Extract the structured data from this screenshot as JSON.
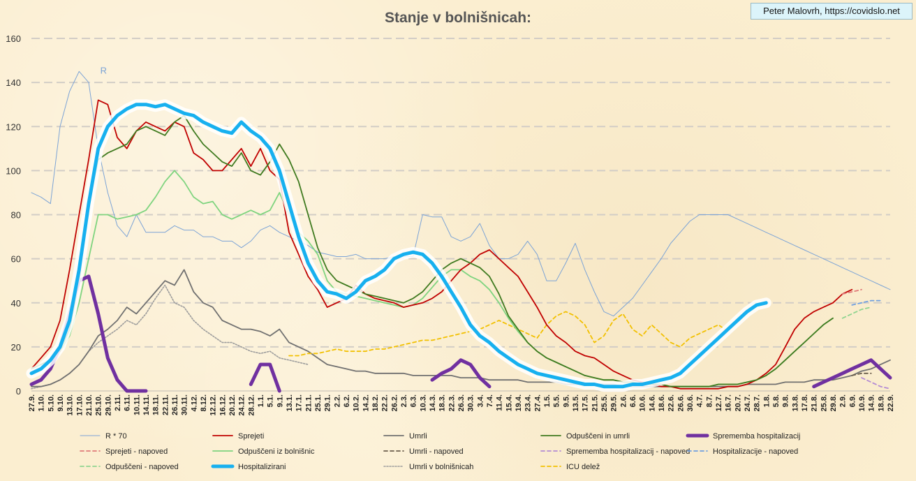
{
  "title": "Stanje v bolnišnicah:",
  "credit": "Peter Malovrh, https://covidslo.net",
  "colors": {
    "r": "#7ba3d6",
    "sprejeti": "#c00000",
    "umrli": "#707070",
    "odpusceni_umrli": "#3f7a1f",
    "sprememba": "#7030a0",
    "odpusceni_bol": "#7fd47f",
    "hospitalizirani": "#17b0ef",
    "umrli_bol": "#9c9c9c",
    "icu": "#f2c000",
    "sprejeti_nap": "#e07a7a",
    "umrli_nap": "#6b5e4c",
    "sprememba_nap": "#b48bd4",
    "hosp_nap": "#6f9fe0",
    "odpusceni_nap": "#8fd48f"
  },
  "chart_data": {
    "type": "line",
    "title": "Stanje v bolnišnicah:",
    "ylim": [
      0,
      160
    ],
    "yticks": [
      0,
      20,
      40,
      60,
      80,
      100,
      120,
      140,
      160
    ],
    "grid": true,
    "legend_position": "bottom",
    "x_start": "27.9.",
    "x_step_days": 4,
    "x_labels": [
      "27.9.",
      "1.10.",
      "5.10.",
      "9.10.",
      "13.10.",
      "17.10.",
      "21.10.",
      "25.10.",
      "29.10.",
      "2.11.",
      "6.11.",
      "10.11.",
      "14.11.",
      "18.11.",
      "22.11.",
      "26.11.",
      "30.11.",
      "4.12.",
      "8.12.",
      "12.12.",
      "16.12.",
      "20.12.",
      "24.12.",
      "28.12.",
      "1.1.",
      "5.1.",
      "9.1.",
      "13.1.",
      "17.1.",
      "21.1.",
      "25.1.",
      "29.1.",
      "2.2.",
      "6.2.",
      "10.2.",
      "14.2.",
      "18.2.",
      "22.2.",
      "26.2.",
      "2.3.",
      "6.3.",
      "10.3.",
      "14.3.",
      "18.3.",
      "22.3.",
      "26.3.",
      "30.3.",
      "3.4.",
      "7.4.",
      "11.4.",
      "15.4.",
      "19.4.",
      "23.4.",
      "27.4.",
      "1.5.",
      "5.5.",
      "9.5.",
      "13.5.",
      "17.5.",
      "21.5.",
      "25.5.",
      "29.5.",
      "2.6.",
      "6.6.",
      "10.6.",
      "14.6.",
      "18.6.",
      "22.6.",
      "26.6.",
      "30.6.",
      "4.7.",
      "8.7.",
      "12.7.",
      "16.7.",
      "20.7.",
      "24.7.",
      "28.7.",
      "1.8.",
      "5.8.",
      "9.8.",
      "13.8.",
      "17.8.",
      "21.8.",
      "25.8.",
      "29.8.",
      "2.9.",
      "6.9.",
      "10.9.",
      "14.9.",
      "18.9.",
      "22.9."
    ],
    "annotations": [
      {
        "text": "R",
        "x": "25.10.",
        "y": 145
      }
    ],
    "series": [
      {
        "key": "r",
        "name": "R * 70",
        "style": "thin",
        "start": 0,
        "values": [
          90,
          88,
          85,
          120,
          136,
          145,
          140,
          110,
          90,
          75,
          70,
          80,
          72,
          72,
          72,
          75,
          73,
          73,
          70,
          70,
          68,
          68,
          65,
          68,
          73,
          75,
          72,
          70,
          68,
          66,
          63,
          62,
          61,
          61,
          62,
          60,
          60,
          60,
          61,
          61,
          61,
          80,
          79,
          79,
          70,
          68,
          70,
          76,
          66,
          60,
          60,
          62,
          68,
          62,
          50,
          50,
          58,
          67,
          55,
          45,
          36,
          34,
          38,
          42,
          48,
          54,
          60,
          67,
          72,
          77,
          80,
          80,
          80,
          80,
          78,
          76,
          74,
          72,
          70,
          68,
          66,
          64,
          62,
          60,
          58,
          56,
          54,
          52,
          50,
          48,
          46
        ]
      },
      {
        "key": "sprejeti",
        "name": "Sprejeti",
        "style": "solid",
        "start": 0,
        "values": [
          10,
          15,
          20,
          32,
          55,
          80,
          105,
          132,
          130,
          115,
          110,
          118,
          122,
          120,
          118,
          122,
          120,
          108,
          105,
          100,
          100,
          105,
          110,
          102,
          110,
          100,
          96,
          72,
          62,
          52,
          46,
          38,
          40,
          42,
          48,
          44,
          42,
          41,
          40,
          38,
          39,
          40,
          42,
          45,
          50,
          55,
          58,
          62,
          64,
          60,
          56,
          52,
          45,
          38,
          30,
          25,
          22,
          18,
          16,
          15,
          12,
          9,
          7,
          5,
          4,
          3,
          2,
          2,
          1,
          1,
          1,
          1,
          1,
          2,
          2,
          3,
          5,
          8,
          12,
          20,
          28,
          33,
          36,
          38,
          40,
          44,
          46
        ]
      },
      {
        "key": "umrli",
        "name": "Umrli",
        "style": "solid",
        "start": 0,
        "values": [
          2,
          2,
          3,
          5,
          8,
          12,
          18,
          25,
          28,
          32,
          38,
          35,
          40,
          45,
          50,
          48,
          55,
          45,
          40,
          38,
          32,
          30,
          28,
          28,
          27,
          25,
          28,
          22,
          20,
          18,
          15,
          12,
          11,
          10,
          9,
          9,
          8,
          8,
          8,
          8,
          7,
          7,
          7,
          7,
          7,
          6,
          6,
          6,
          5,
          5,
          5,
          5,
          4,
          4,
          4,
          4,
          3,
          3,
          3,
          3,
          3,
          3,
          2,
          2,
          2,
          2,
          2,
          2,
          2,
          2,
          2,
          2,
          2,
          2,
          2,
          3,
          3,
          3,
          3,
          4,
          4,
          4,
          5,
          5,
          5,
          6,
          7,
          9,
          10,
          12,
          14
        ]
      },
      {
        "key": "odpusceni_umrli",
        "name": "Odpuščeni in umrli",
        "style": "solid",
        "start": 0,
        "values": [
          10,
          12,
          14,
          18,
          28,
          50,
          85,
          105,
          108,
          110,
          112,
          118,
          120,
          118,
          116,
          122,
          125,
          118,
          112,
          108,
          104,
          102,
          108,
          100,
          98,
          104,
          112,
          105,
          95,
          80,
          65,
          55,
          50,
          48,
          46,
          44,
          43,
          42,
          41,
          40,
          42,
          45,
          50,
          55,
          58,
          60,
          58,
          56,
          52,
          44,
          34,
          28,
          22,
          18,
          15,
          13,
          11,
          9,
          7,
          6,
          5,
          5,
          4,
          4,
          3,
          3,
          3,
          2,
          2,
          2,
          2,
          2,
          3,
          3,
          3,
          4,
          5,
          7,
          10,
          14,
          18,
          22,
          26,
          30,
          33
        ]
      },
      {
        "key": "sprememba",
        "name": "Sprememba hospitalizacij",
        "style": "thick",
        "start": 0,
        "values": [
          3,
          5,
          10,
          20,
          35,
          50,
          52,
          35,
          15,
          5,
          0,
          0,
          0,
          null,
          null,
          null,
          null,
          null,
          null,
          null,
          null,
          null,
          null,
          3,
          12,
          12,
          0,
          null,
          null,
          null,
          null,
          null,
          null,
          null,
          null,
          null,
          null,
          null,
          null,
          null,
          null,
          null,
          5,
          8,
          10,
          14,
          12,
          6,
          2,
          null,
          null,
          null,
          null,
          null,
          null,
          null,
          null,
          null,
          null,
          null,
          null,
          null,
          null,
          null,
          null,
          null,
          null,
          null,
          null,
          null,
          null,
          null,
          null,
          null,
          null,
          null,
          null,
          null,
          null,
          null,
          null,
          null,
          2,
          4,
          6,
          8,
          10,
          12,
          14,
          10,
          6
        ]
      },
      {
        "key": "odpusceni_bol",
        "name": "Odpuščeni iz bolnišnic",
        "style": "solid",
        "start": 0,
        "values": [
          10,
          12,
          14,
          18,
          25,
          40,
          60,
          80,
          80,
          78,
          79,
          80,
          82,
          88,
          95,
          100,
          95,
          88,
          85,
          86,
          80,
          78,
          80,
          82,
          80,
          82,
          90,
          80,
          72,
          68,
          62,
          50,
          45,
          44,
          43,
          42,
          41,
          40,
          39,
          38,
          39,
          42,
          47,
          52,
          55,
          55,
          52,
          50,
          46,
          40,
          33,
          27,
          22,
          18,
          15,
          13,
          11,
          9,
          7,
          6,
          5,
          5,
          4,
          4,
          3,
          3,
          3,
          2,
          2,
          2,
          2,
          2,
          3,
          3,
          3,
          4,
          5,
          7,
          10,
          14,
          18,
          22,
          26,
          30,
          33
        ]
      },
      {
        "key": "hospitalizirani",
        "name": "Hospitalizirani",
        "style": "hosp",
        "start": 0,
        "values": [
          8,
          10,
          14,
          20,
          32,
          55,
          85,
          110,
          120,
          125,
          128,
          130,
          130,
          129,
          130,
          128,
          126,
          125,
          122,
          120,
          118,
          117,
          122,
          118,
          115,
          110,
          100,
          85,
          70,
          58,
          50,
          45,
          44,
          42,
          45,
          50,
          52,
          55,
          60,
          62,
          63,
          62,
          58,
          52,
          45,
          38,
          30,
          25,
          22,
          18,
          15,
          12,
          10,
          8,
          7,
          6,
          5,
          4,
          3,
          3,
          2,
          2,
          2,
          3,
          3,
          4,
          5,
          6,
          8,
          12,
          16,
          20,
          24,
          28,
          32,
          36,
          39,
          40
        ]
      },
      {
        "key": "umrli_bol",
        "name": "Umrli v bolnišnicah",
        "style": "dotted",
        "start": 0,
        "values": [
          1,
          2,
          3,
          5,
          8,
          12,
          18,
          22,
          25,
          28,
          32,
          30,
          35,
          42,
          48,
          40,
          38,
          32,
          28,
          25,
          22,
          22,
          20,
          18,
          17,
          18,
          15,
          14,
          13,
          12
        ]
      },
      {
        "key": "icu",
        "name": "ICU delež",
        "style": "dashed",
        "start": 27,
        "values": [
          16,
          16,
          17,
          17,
          18,
          19,
          18,
          18,
          18,
          19,
          19,
          20,
          21,
          22,
          23,
          23,
          24,
          25,
          26,
          27,
          28,
          30,
          32,
          30,
          28,
          26,
          24,
          30,
          34,
          36,
          34,
          30,
          22,
          25,
          32,
          35,
          28,
          25,
          30,
          26,
          22,
          20,
          24,
          26,
          28,
          30,
          27
        ]
      },
      {
        "key": "sprejeti_nap",
        "name": "Sprejeti - napoved",
        "style": "dashed",
        "start": 85,
        "values": [
          44,
          45,
          46
        ]
      },
      {
        "key": "umrli_nap",
        "name": "Umrli - napoved",
        "style": "dashed",
        "start": 86,
        "values": [
          7,
          8,
          8
        ]
      },
      {
        "key": "sprememba_nap",
        "name": "Sprememba hospitalizacij - napoved",
        "style": "dashed",
        "start": 87,
        "values": [
          6,
          4,
          2,
          1
        ]
      },
      {
        "key": "hosp_nap",
        "name": "Hospitalizacije - napoved",
        "style": "dashed",
        "start": 86,
        "values": [
          39,
          40,
          41,
          41
        ]
      },
      {
        "key": "odpusceni_nap",
        "name": "Odpuščeni - napoved",
        "style": "dashed",
        "start": 85,
        "values": [
          33,
          35,
          37,
          38
        ]
      }
    ],
    "legend": [
      {
        "key": "r",
        "label": "R * 70",
        "style": "thin"
      },
      {
        "key": "sprejeti",
        "label": "Sprejeti",
        "style": "solid"
      },
      {
        "key": "umrli",
        "label": "Umrli",
        "style": "solid"
      },
      {
        "key": "odpusceni_umrli",
        "label": "Odpuščeni in umrli",
        "style": "solid"
      },
      {
        "key": "sprememba",
        "label": "Sprememba hospitalizacij",
        "style": "thick"
      },
      {
        "key": "sprejeti_nap",
        "label": "Sprejeti - napoved",
        "style": "dashed"
      },
      {
        "key": "odpusceni_bol",
        "label": "Odpuščeni iz bolnišnic",
        "style": "solid"
      },
      {
        "key": "umrli_nap",
        "label": "Umrli - napoved",
        "style": "dashed"
      },
      {
        "key": "sprememba_nap",
        "label": "Sprememba hospitalizacij - napoved",
        "style": "dashed"
      },
      {
        "key": "hosp_nap",
        "label": "Hospitalizacije - napoved",
        "style": "dashed"
      },
      {
        "key": "odpusceni_nap",
        "label": "Odpuščeni - napoved",
        "style": "dashed"
      },
      {
        "key": "hospitalizirani",
        "label": "Hospitalizirani",
        "style": "hosp"
      },
      {
        "key": "umrli_bol",
        "label": "Umrli v bolnišnicah",
        "style": "dotted"
      },
      {
        "key": "icu",
        "label": "ICU delež",
        "style": "dashed"
      }
    ]
  }
}
